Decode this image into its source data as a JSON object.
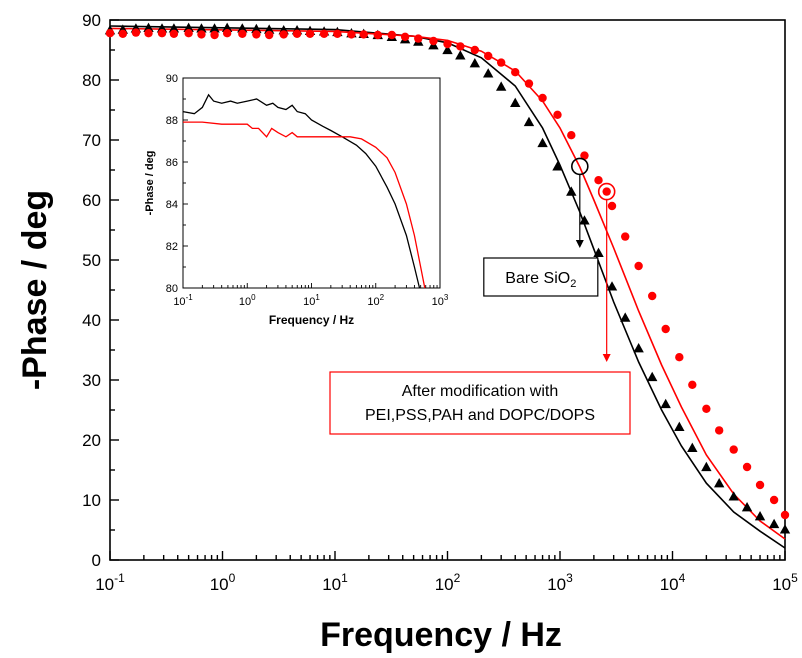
{
  "chart_data": [
    {
      "type": "scatter",
      "xlabel": "Frequency / Hz",
      "ylabel": "-Phase / deg",
      "xscale": "log",
      "xlim": [
        0.1,
        100000
      ],
      "ylim": [
        0,
        90
      ],
      "xticks": [
        {
          "value": 0.1,
          "base": "10",
          "exp": "-1"
        },
        {
          "value": 1,
          "base": "10",
          "exp": "0"
        },
        {
          "value": 10,
          "base": "10",
          "exp": "1"
        },
        {
          "value": 100,
          "base": "10",
          "exp": "2"
        },
        {
          "value": 1000,
          "base": "10",
          "exp": "3"
        },
        {
          "value": 10000,
          "base": "10",
          "exp": "4"
        },
        {
          "value": 100000,
          "base": "10",
          "exp": "5"
        }
      ],
      "yticks": [
        "0",
        "10",
        "20",
        "30",
        "40",
        "50",
        "60",
        "70",
        "80",
        "90"
      ],
      "grid": false,
      "series": [
        {
          "color": "#000000",
          "marker": "triangle",
          "points": [
            [
              0.1,
              88.3
            ],
            [
              0.13,
              88.4
            ],
            [
              0.17,
              88.6
            ],
            [
              0.22,
              88.7
            ],
            [
              0.29,
              88.6
            ],
            [
              0.37,
              88.6
            ],
            [
              0.5,
              88.7
            ],
            [
              0.65,
              88.6
            ],
            [
              0.85,
              88.6
            ],
            [
              1.1,
              88.7
            ],
            [
              1.5,
              88.6
            ],
            [
              2,
              88.5
            ],
            [
              2.6,
              88.4
            ],
            [
              3.5,
              88.3
            ],
            [
              4.6,
              88.3
            ],
            [
              6,
              88.2
            ],
            [
              8,
              88.1
            ],
            [
              10.5,
              88.0
            ],
            [
              14,
              87.8
            ],
            [
              18,
              87.7
            ],
            [
              24,
              87.5
            ],
            [
              32,
              87.2
            ],
            [
              42,
              86.8
            ],
            [
              55,
              86.4
            ],
            [
              75,
              85.8
            ],
            [
              100,
              85.0
            ],
            [
              130,
              84.1
            ],
            [
              175,
              82.8
            ],
            [
              230,
              81.1
            ],
            [
              300,
              78.9
            ],
            [
              400,
              76.2
            ],
            [
              530,
              73.0
            ],
            [
              700,
              69.5
            ],
            [
              950,
              65.6
            ],
            [
              1260,
              61.4
            ],
            [
              1650,
              56.6
            ],
            [
              2200,
              51.2
            ],
            [
              2900,
              45.6
            ],
            [
              3800,
              40.4
            ],
            [
              5000,
              35.3
            ],
            [
              6600,
              30.5
            ],
            [
              8700,
              26.0
            ],
            [
              11500,
              22.2
            ],
            [
              15000,
              18.7
            ],
            [
              20000,
              15.5
            ],
            [
              26000,
              12.8
            ],
            [
              35000,
              10.6
            ],
            [
              46000,
              8.8
            ],
            [
              60000,
              7.3
            ],
            [
              80000,
              6.0
            ],
            [
              100000,
              5.1
            ]
          ]
        },
        {
          "color": "#ff0000",
          "marker": "circle",
          "points": [
            [
              0.1,
              87.8
            ],
            [
              0.13,
              87.7
            ],
            [
              0.17,
              87.9
            ],
            [
              0.22,
              87.8
            ],
            [
              0.29,
              87.8
            ],
            [
              0.37,
              87.7
            ],
            [
              0.5,
              87.8
            ],
            [
              0.65,
              87.6
            ],
            [
              0.85,
              87.5
            ],
            [
              1.1,
              87.8
            ],
            [
              1.5,
              87.7
            ],
            [
              2,
              87.6
            ],
            [
              2.6,
              87.5
            ],
            [
              3.5,
              87.6
            ],
            [
              4.6,
              87.7
            ],
            [
              6,
              87.7
            ],
            [
              8,
              87.7
            ],
            [
              10.5,
              87.7
            ],
            [
              14,
              87.6
            ],
            [
              18,
              87.6
            ],
            [
              24,
              87.5
            ],
            [
              32,
              87.5
            ],
            [
              42,
              87.2
            ],
            [
              55,
              86.9
            ],
            [
              75,
              86.5
            ],
            [
              100,
              86.0
            ],
            [
              130,
              85.6
            ],
            [
              175,
              85.0
            ],
            [
              230,
              84.0
            ],
            [
              300,
              82.9
            ],
            [
              400,
              81.3
            ],
            [
              530,
              79.4
            ],
            [
              700,
              77.0
            ],
            [
              950,
              74.2
            ],
            [
              1260,
              70.8
            ],
            [
              1650,
              67.4
            ],
            [
              2200,
              63.3
            ],
            [
              2900,
              59.0
            ],
            [
              3800,
              53.9
            ],
            [
              5000,
              49.0
            ],
            [
              6600,
              44.0
            ],
            [
              8700,
              38.5
            ],
            [
              11500,
              33.8
            ],
            [
              15000,
              29.2
            ],
            [
              20000,
              25.2
            ],
            [
              26000,
              21.6
            ],
            [
              35000,
              18.4
            ],
            [
              46000,
              15.5
            ],
            [
              60000,
              12.5
            ],
            [
              80000,
              10.0
            ],
            [
              100000,
              7.5
            ]
          ]
        }
      ],
      "fit_lines": [
        {
          "color": "#000000",
          "points": [
            [
              0.1,
              89.0
            ],
            [
              10,
              88.4
            ],
            [
              50,
              87.3
            ],
            [
              100,
              86.2
            ],
            [
              200,
              83.7
            ],
            [
              400,
              79.0
            ],
            [
              700,
              72.0
            ],
            [
              1000,
              65.8
            ],
            [
              1500,
              58.0
            ],
            [
              2000,
              51.8
            ],
            [
              3000,
              43.0
            ],
            [
              5000,
              33.0
            ],
            [
              8000,
              25.0
            ],
            [
              12000,
              19.0
            ],
            [
              20000,
              12.8
            ],
            [
              35000,
              8.0
            ],
            [
              60000,
              4.8
            ],
            [
              100000,
              2.0
            ]
          ]
        },
        {
          "color": "#ff0000",
          "points": [
            [
              0.1,
              88.6
            ],
            [
              10,
              88.1
            ],
            [
              50,
              87.3
            ],
            [
              100,
              86.6
            ],
            [
              200,
              84.8
            ],
            [
              400,
              81.5
            ],
            [
              700,
              76.5
            ],
            [
              1000,
              72.0
            ],
            [
              1500,
              65.5
            ],
            [
              2000,
              60.0
            ],
            [
              3000,
              52.0
            ],
            [
              5000,
              41.5
            ],
            [
              8000,
              32.5
            ],
            [
              12000,
              25.5
            ],
            [
              20000,
              17.5
            ],
            [
              35000,
              11.0
            ],
            [
              60000,
              6.5
            ],
            [
              100000,
              3.5
            ]
          ]
        }
      ],
      "annotations": {
        "black_marker_point": [
          1500,
          65.6
        ],
        "red_marker_point": [
          2600,
          61.4
        ],
        "black_arrow_end_y": 52,
        "red_arrow_end_y": 33,
        "bare_label": {
          "text": "Bare SiO",
          "sub": "2"
        },
        "modified_label": {
          "line1": "After modification with",
          "line2": "PEI,PSS,PAH and DOPC/DOPS"
        }
      }
    },
    {
      "type": "line",
      "inset": true,
      "xlabel": "Frequency / Hz",
      "ylabel": "-Phase / deg",
      "xscale": "log",
      "xlim": [
        0.1,
        1000
      ],
      "ylim": [
        80,
        90
      ],
      "xticks": [
        {
          "value": 0.1,
          "base": "10",
          "exp": "-1"
        },
        {
          "value": 1,
          "base": "10",
          "exp": "0"
        },
        {
          "value": 10,
          "base": "10",
          "exp": "1"
        },
        {
          "value": 100,
          "base": "10",
          "exp": "2"
        },
        {
          "value": 1000,
          "base": "10",
          "exp": "3"
        }
      ],
      "yticks": [
        "80",
        "82",
        "84",
        "86",
        "88",
        "90"
      ],
      "series": [
        {
          "color": "#000000",
          "points": [
            [
              0.1,
              88.4
            ],
            [
              0.15,
              88.3
            ],
            [
              0.2,
              88.6
            ],
            [
              0.25,
              89.2
            ],
            [
              0.3,
              88.9
            ],
            [
              0.4,
              88.8
            ],
            [
              0.55,
              88.9
            ],
            [
              0.7,
              88.8
            ],
            [
              1,
              88.9
            ],
            [
              1.4,
              89.0
            ],
            [
              2,
              88.7
            ],
            [
              2.5,
              88.8
            ],
            [
              3,
              88.6
            ],
            [
              4,
              88.5
            ],
            [
              5,
              88.7
            ],
            [
              6,
              88.4
            ],
            [
              8,
              88.3
            ],
            [
              10,
              88.0
            ],
            [
              15,
              87.7
            ],
            [
              20,
              87.5
            ],
            [
              30,
              87.2
            ],
            [
              50,
              86.8
            ],
            [
              70,
              86.4
            ],
            [
              100,
              85.8
            ],
            [
              150,
              84.8
            ],
            [
              200,
              84.0
            ],
            [
              300,
              82.5
            ],
            [
              400,
              81.0
            ],
            [
              480,
              80.0
            ]
          ]
        },
        {
          "color": "#ff0000",
          "points": [
            [
              0.1,
              87.9
            ],
            [
              0.2,
              87.9
            ],
            [
              0.4,
              87.8
            ],
            [
              0.7,
              87.8
            ],
            [
              1,
              87.8
            ],
            [
              1.2,
              87.6
            ],
            [
              1.5,
              87.6
            ],
            [
              2,
              87.2
            ],
            [
              2.4,
              87.6
            ],
            [
              3,
              87.4
            ],
            [
              4,
              87.2
            ],
            [
              5,
              87.4
            ],
            [
              6,
              87.2
            ],
            [
              10,
              87.2
            ],
            [
              20,
              87.2
            ],
            [
              40,
              87.2
            ],
            [
              60,
              87.1
            ],
            [
              100,
              86.7
            ],
            [
              150,
              86.2
            ],
            [
              200,
              85.5
            ],
            [
              300,
              84.0
            ],
            [
              400,
              82.5
            ],
            [
              500,
              81.0
            ],
            [
              580,
              80.0
            ]
          ]
        }
      ]
    }
  ]
}
